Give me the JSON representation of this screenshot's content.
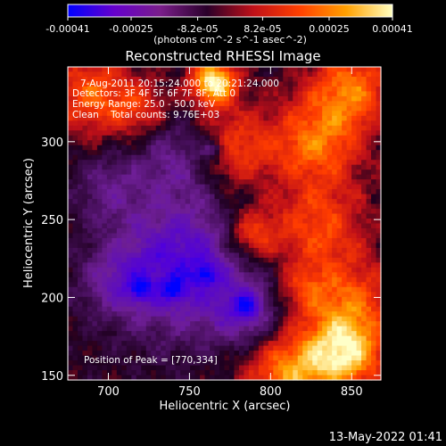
{
  "chart_data": {
    "type": "heatmap",
    "title": "Reconstructed RHESSI Image",
    "xlabel": "Heliocentric X (arcsec)",
    "ylabel": "Heliocentric Y (arcsec)",
    "xlim": [
      675,
      868
    ],
    "ylim": [
      147,
      348
    ],
    "xticks": [
      {
        "v": 700,
        "label": "700"
      },
      {
        "v": 750,
        "label": "750"
      },
      {
        "v": 800,
        "label": "800"
      },
      {
        "v": 850,
        "label": "850"
      }
    ],
    "yticks": [
      {
        "v": 150,
        "label": "150"
      },
      {
        "v": 200,
        "label": "200"
      },
      {
        "v": 250,
        "label": "250"
      },
      {
        "v": 300,
        "label": "300"
      }
    ],
    "colorbar": {
      "range": [
        -0.00041,
        0.00041
      ],
      "ticks": [
        {
          "v": -0.00041,
          "label": "-0.00041"
        },
        {
          "v": -0.00025,
          "label": "-0.00025"
        },
        {
          "v": -8.2e-05,
          "label": "-8.2e-05"
        },
        {
          "v": 8.2e-05,
          "label": "8.2e-05"
        },
        {
          "v": 0.00025,
          "label": "0.00025"
        },
        {
          "v": 0.00041,
          "label": "0.00041"
        }
      ],
      "units": "(photons cm^-2 s^-1 asec^-2)",
      "colors": [
        "#0000ff",
        "#6600cc",
        "#7a1e8a",
        "#2a002a",
        "#c01018",
        "#ff4000",
        "#ffa000",
        "#ffffc0"
      ]
    },
    "annotations": {
      "time": "7-Aug-2011 20:15:24.000 to 20:21:24.000",
      "detectors": "Detectors: 3F 4F 5F 6F 7F 8F, Att 0",
      "energy": "Energy Range: 25.0 - 50.0 keV",
      "clean": "Clean    Total counts: 9.76E+03",
      "peak": "Position of Peak = [770,334]"
    },
    "peak": {
      "x": 770,
      "y": 334
    },
    "features": {
      "positive": [
        {
          "x": 765,
          "y": 338,
          "r": 10,
          "a": 1.0
        },
        {
          "x": 690,
          "y": 330,
          "r": 18,
          "a": 0.55
        },
        {
          "x": 720,
          "y": 320,
          "r": 12,
          "a": 0.35
        },
        {
          "x": 775,
          "y": 295,
          "r": 18,
          "a": 0.5
        },
        {
          "x": 828,
          "y": 300,
          "r": 20,
          "a": 0.6
        },
        {
          "x": 850,
          "y": 335,
          "r": 18,
          "a": 0.6
        },
        {
          "x": 830,
          "y": 245,
          "r": 20,
          "a": 0.5
        },
        {
          "x": 788,
          "y": 240,
          "r": 12,
          "a": 0.55
        },
        {
          "x": 850,
          "y": 200,
          "r": 18,
          "a": 0.45
        },
        {
          "x": 845,
          "y": 165,
          "r": 18,
          "a": 0.9
        },
        {
          "x": 810,
          "y": 150,
          "r": 18,
          "a": 0.65
        },
        {
          "x": 820,
          "y": 205,
          "r": 12,
          "a": 0.35
        }
      ],
      "negative": [
        {
          "x": 745,
          "y": 220,
          "r": 30,
          "a": 0.75
        },
        {
          "x": 745,
          "y": 290,
          "r": 18,
          "a": 0.4
        },
        {
          "x": 700,
          "y": 270,
          "r": 15,
          "a": 0.3
        },
        {
          "x": 785,
          "y": 190,
          "r": 14,
          "a": 0.45
        },
        {
          "x": 705,
          "y": 210,
          "r": 15,
          "a": 0.3
        }
      ],
      "minima": [
        {
          "x": 760,
          "y": 215
        },
        {
          "x": 740,
          "y": 205
        },
        {
          "x": 720,
          "y": 205
        },
        {
          "x": 765,
          "y": 295
        },
        {
          "x": 785,
          "y": 195
        }
      ]
    }
  },
  "footer": {
    "date": "13-May-2022 01:41"
  }
}
